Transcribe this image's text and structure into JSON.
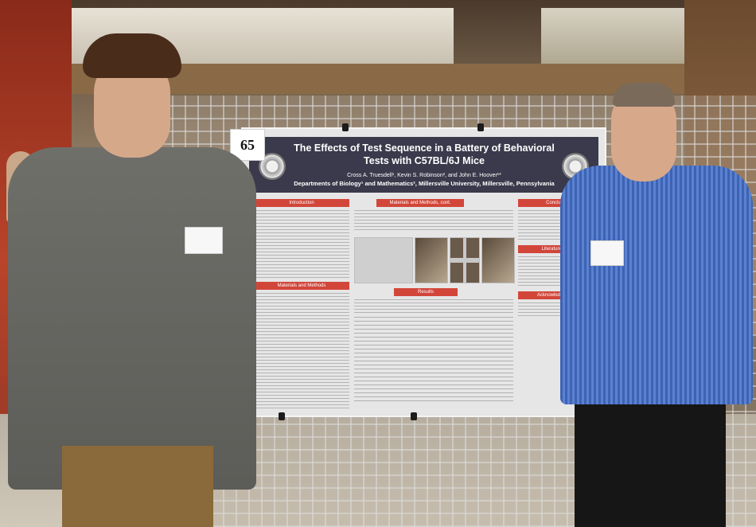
{
  "poster": {
    "number": "65",
    "title": "The Effects of Test Sequence in a Battery of Behavioral Tests with C57BL/6J Mice",
    "authors": "Cross A. Truesdell¹, Kevin S. Robinson², and John E. Hoover¹*",
    "affiliations": "Departments of Biology¹ and Mathematics², Millersville University, Millersville, Pennsylvania",
    "section_headings": {
      "introduction": "Introduction",
      "materials_methods": "Materials and Methods",
      "materials_methods_cont": "Materials and Methods, cont.",
      "results": "Results",
      "conclusion": "Conclusion",
      "literature_cited": "Literature Cited",
      "acknowledgements": "Acknowledgements"
    }
  },
  "colors": {
    "poster_header": "#3a3a4c",
    "section_heading": "#d2463a",
    "shirt_left": "#6f6f6a",
    "shirt_right": "#4a6fc0"
  }
}
